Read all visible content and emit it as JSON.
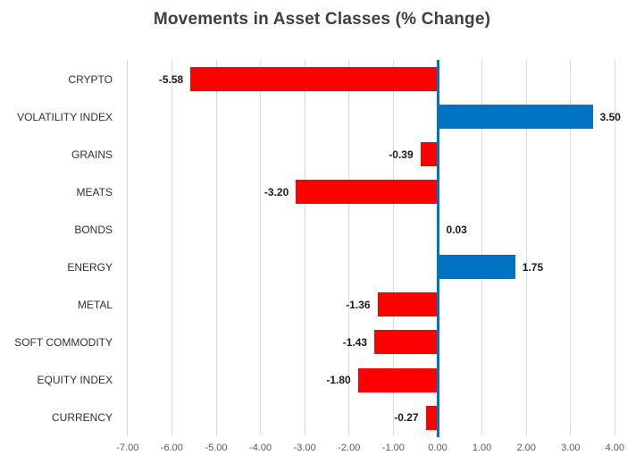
{
  "chart_data": {
    "type": "bar",
    "orientation": "horizontal",
    "title": "Movements in Asset Classes (% Change)",
    "categories": [
      "CRYPTO",
      "VOLATILITY INDEX",
      "GRAINS",
      "MEATS",
      "BONDS",
      "ENERGY",
      "METAL",
      "SOFT COMMODITY",
      "EQUITY INDEX",
      "CURRENCY"
    ],
    "values": [
      -5.58,
      3.5,
      -0.39,
      -3.2,
      0.03,
      1.75,
      -1.36,
      -1.43,
      -1.8,
      -0.27
    ],
    "value_labels": [
      "-5.58",
      "3.50",
      "-0.39",
      "-3.20",
      "0.03",
      "1.75",
      "-1.36",
      "-1.43",
      "-1.80",
      "-0.27"
    ],
    "x_ticks": [
      -7,
      -6,
      -5,
      -4,
      -3,
      -2,
      -1,
      0,
      1,
      2,
      3,
      4
    ],
    "x_tick_labels": [
      "-7.00",
      "-6.00",
      "-5.00",
      "-4.00",
      "-3.00",
      "-2.00",
      "-1.00",
      "0.00",
      "1.00",
      "2.00",
      "3.00",
      "4.00"
    ],
    "xlim": [
      -7,
      4
    ],
    "grid": true,
    "legend": false,
    "xlabel": "",
    "ylabel": "",
    "colors": {
      "positive_bar": "#0072C2",
      "negative_bar": "#FF0000",
      "zero_axis_line": "#0072C2",
      "gridline": "#D9D9D9",
      "title_text": "#3F3F3F",
      "category_text": "#303030",
      "value_text": "#1A1A1A",
      "tick_text": "#595959",
      "background": "#FFFFFF"
    }
  }
}
